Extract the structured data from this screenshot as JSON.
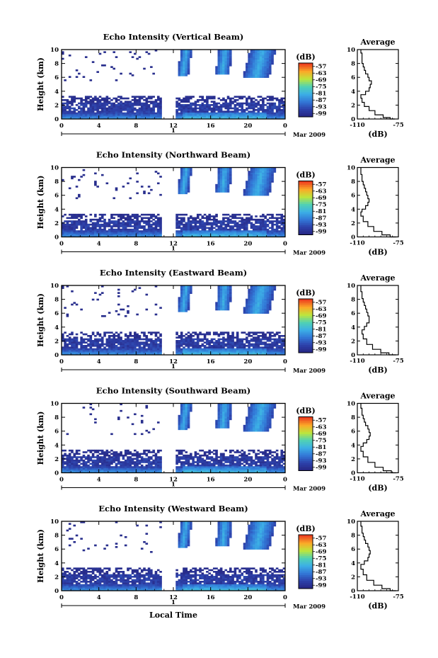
{
  "figure": {
    "x_axis_label": "Local Time",
    "date_label": "Mar 2009",
    "day_label": "1",
    "avg_title": "Average",
    "avg_xlabel": "(dB)",
    "cb_label": "(dB)"
  },
  "chart_data": [
    {
      "type": "heatmap",
      "title": "Echo Intensity (Vertical Beam)",
      "xlabel": "Local Time",
      "ylabel": "Height (km)",
      "xticks": [
        "0",
        "4",
        "8",
        "12",
        "16",
        "20",
        "0"
      ],
      "xlim": [
        0,
        24
      ],
      "ylim": [
        0,
        10
      ],
      "yticks": [
        "0",
        "2",
        "4",
        "6",
        "8",
        "10"
      ],
      "colorbar": {
        "label": "(dB)",
        "ticks": [
          "-57",
          "-63",
          "-69",
          "-75",
          "-81",
          "-87",
          "-93",
          "-99"
        ]
      },
      "data_gap_hours": [
        10.8,
        12.2
      ],
      "average_profile": {
        "title": "Average",
        "xlabel": "(dB)",
        "xlim": [
          -110,
          -75
        ],
        "xticks": [
          "-110",
          "-75"
        ],
        "yticks": [
          "0",
          "2",
          "4",
          "6",
          "8",
          "10"
        ],
        "points": [
          [
            -78,
            0
          ],
          [
            -82,
            0.2
          ],
          [
            -88,
            0.6
          ],
          [
            -95,
            1.2
          ],
          [
            -100,
            1.8
          ],
          [
            -104,
            2.4
          ],
          [
            -106,
            3
          ],
          [
            -107,
            3.5
          ],
          [
            -103,
            4
          ],
          [
            -100,
            4.5
          ],
          [
            -99,
            5
          ],
          [
            -98,
            5.5
          ],
          [
            -100,
            6
          ],
          [
            -101,
            6.5
          ],
          [
            -103,
            7
          ],
          [
            -104,
            7.5
          ],
          [
            -105,
            8
          ],
          [
            -106,
            8.5
          ],
          [
            -106,
            9
          ],
          [
            -106,
            9.5
          ],
          [
            -107,
            10
          ]
        ]
      }
    },
    {
      "type": "heatmap",
      "title": "Echo Intensity (Northward Beam)",
      "xlabel": "Local Time",
      "ylabel": "Height (km)",
      "xticks": [
        "0",
        "4",
        "8",
        "12",
        "16",
        "20",
        "0"
      ],
      "xlim": [
        0,
        24
      ],
      "ylim": [
        0,
        10
      ],
      "yticks": [
        "0",
        "2",
        "4",
        "6",
        "8",
        "10"
      ],
      "colorbar": {
        "label": "(dB)",
        "ticks": [
          "-57",
          "-63",
          "-69",
          "-75",
          "-81",
          "-87",
          "-93",
          "-99"
        ]
      },
      "data_gap_hours": [
        10.8,
        12.2
      ],
      "average_profile": {
        "title": "Average",
        "xlabel": "(dB)",
        "xlim": [
          -110,
          -75
        ],
        "xticks": [
          "-110",
          "-75"
        ],
        "yticks": [
          "0",
          "2",
          "4",
          "6",
          "8",
          "10"
        ],
        "points": [
          [
            -77,
            0
          ],
          [
            -82,
            0.3
          ],
          [
            -89,
            0.8
          ],
          [
            -96,
            1.5
          ],
          [
            -101,
            2.2
          ],
          [
            -105,
            3
          ],
          [
            -107,
            3.6
          ],
          [
            -106,
            4
          ],
          [
            -103,
            4.5
          ],
          [
            -101,
            5
          ],
          [
            -100,
            5.5
          ],
          [
            -101,
            6
          ],
          [
            -102,
            6.5
          ],
          [
            -103,
            7
          ],
          [
            -104,
            7.5
          ],
          [
            -105,
            8
          ],
          [
            -106,
            8.5
          ],
          [
            -106,
            9
          ],
          [
            -107,
            9.5
          ],
          [
            -107,
            10
          ]
        ]
      }
    },
    {
      "type": "heatmap",
      "title": "Echo Intensity (Eastward Beam)",
      "xlabel": "Local Time",
      "ylabel": "Height (km)",
      "xticks": [
        "0",
        "4",
        "8",
        "12",
        "16",
        "20",
        "0"
      ],
      "xlim": [
        0,
        24
      ],
      "ylim": [
        0,
        10
      ],
      "yticks": [
        "0",
        "2",
        "4",
        "6",
        "8",
        "10"
      ],
      "colorbar": {
        "label": "(dB)",
        "ticks": [
          "-57",
          "-63",
          "-69",
          "-75",
          "-81",
          "-87",
          "-93",
          "-99"
        ]
      },
      "data_gap_hours": [
        10.8,
        12.2
      ],
      "average_profile": {
        "title": "Average",
        "xlabel": "(dB)",
        "xlim": [
          -110,
          -75
        ],
        "xticks": [
          "-110",
          "-75"
        ],
        "yticks": [
          "0",
          "2",
          "4",
          "6",
          "8",
          "10"
        ],
        "points": [
          [
            -77,
            0
          ],
          [
            -83,
            0.3
          ],
          [
            -90,
            0.8
          ],
          [
            -97,
            1.5
          ],
          [
            -102,
            2.3
          ],
          [
            -105,
            3
          ],
          [
            -106,
            3.6
          ],
          [
            -104,
            4.1
          ],
          [
            -102,
            4.6
          ],
          [
            -100,
            5.1
          ],
          [
            -100,
            5.6
          ],
          [
            -101,
            6.1
          ],
          [
            -102,
            6.6
          ],
          [
            -103,
            7.1
          ],
          [
            -104,
            7.6
          ],
          [
            -105,
            8.1
          ],
          [
            -106,
            8.6
          ],
          [
            -106,
            9.1
          ],
          [
            -107,
            9.6
          ],
          [
            -107,
            10
          ]
        ]
      }
    },
    {
      "type": "heatmap",
      "title": "Echo Intensity (Southward Beam)",
      "xlabel": "Local Time",
      "ylabel": "Height (km)",
      "xticks": [
        "0",
        "4",
        "8",
        "12",
        "16",
        "20",
        "0"
      ],
      "xlim": [
        0,
        24
      ],
      "ylim": [
        0,
        10
      ],
      "yticks": [
        "0",
        "2",
        "4",
        "6",
        "8",
        "10"
      ],
      "colorbar": {
        "label": "(dB)",
        "ticks": [
          "-57",
          "-63",
          "-69",
          "-75",
          "-81",
          "-87",
          "-93",
          "-99"
        ]
      },
      "data_gap_hours": [
        10.8,
        12.2
      ],
      "average_profile": {
        "title": "Average",
        "xlabel": "(dB)",
        "xlim": [
          -110,
          -75
        ],
        "xticks": [
          "-110",
          "-75"
        ],
        "yticks": [
          "0",
          "2",
          "4",
          "6",
          "8",
          "10"
        ],
        "points": [
          [
            -77,
            0
          ],
          [
            -81,
            0.3
          ],
          [
            -88,
            0.8
          ],
          [
            -95,
            1.5
          ],
          [
            -101,
            2.3
          ],
          [
            -105,
            3.1
          ],
          [
            -107,
            3.8
          ],
          [
            -105,
            4.3
          ],
          [
            -102,
            4.8
          ],
          [
            -100,
            5.3
          ],
          [
            -99,
            5.8
          ],
          [
            -100,
            6.3
          ],
          [
            -101,
            6.8
          ],
          [
            -103,
            7.3
          ],
          [
            -104,
            7.8
          ],
          [
            -105,
            8.3
          ],
          [
            -106,
            8.8
          ],
          [
            -106,
            9.3
          ],
          [
            -107,
            9.8
          ],
          [
            -107,
            10
          ]
        ]
      }
    },
    {
      "type": "heatmap",
      "title": "Echo Intensity (Westward Beam)",
      "xlabel": "Local Time",
      "ylabel": "Height (km)",
      "xticks": [
        "0",
        "4",
        "8",
        "12",
        "16",
        "20",
        "0"
      ],
      "xlim": [
        0,
        24
      ],
      "ylim": [
        0,
        10
      ],
      "yticks": [
        "0",
        "2",
        "4",
        "6",
        "8",
        "10"
      ],
      "colorbar": {
        "label": "(dB)",
        "ticks": [
          "-57",
          "-63",
          "-69",
          "-75",
          "-81",
          "-87",
          "-93",
          "-99"
        ]
      },
      "data_gap_hours": [
        10.8,
        12.2
      ],
      "average_profile": {
        "title": "Average",
        "xlabel": "(dB)",
        "xlim": [
          -110,
          -75
        ],
        "xticks": [
          "-110",
          "-75"
        ],
        "yticks": [
          "0",
          "2",
          "4",
          "6",
          "8",
          "10"
        ],
        "points": [
          [
            -77,
            0
          ],
          [
            -82,
            0.3
          ],
          [
            -89,
            0.8
          ],
          [
            -96,
            1.5
          ],
          [
            -102,
            2.3
          ],
          [
            -105,
            3.1
          ],
          [
            -107,
            3.8
          ],
          [
            -104,
            4.3
          ],
          [
            -101,
            4.8
          ],
          [
            -100,
            5.3
          ],
          [
            -99,
            5.8
          ],
          [
            -100,
            6.3
          ],
          [
            -101,
            6.8
          ],
          [
            -103,
            7.3
          ],
          [
            -104,
            7.8
          ],
          [
            -105,
            8.3
          ],
          [
            -106,
            8.8
          ],
          [
            -106,
            9.3
          ],
          [
            -107,
            9.8
          ],
          [
            -107,
            10
          ]
        ]
      }
    }
  ]
}
